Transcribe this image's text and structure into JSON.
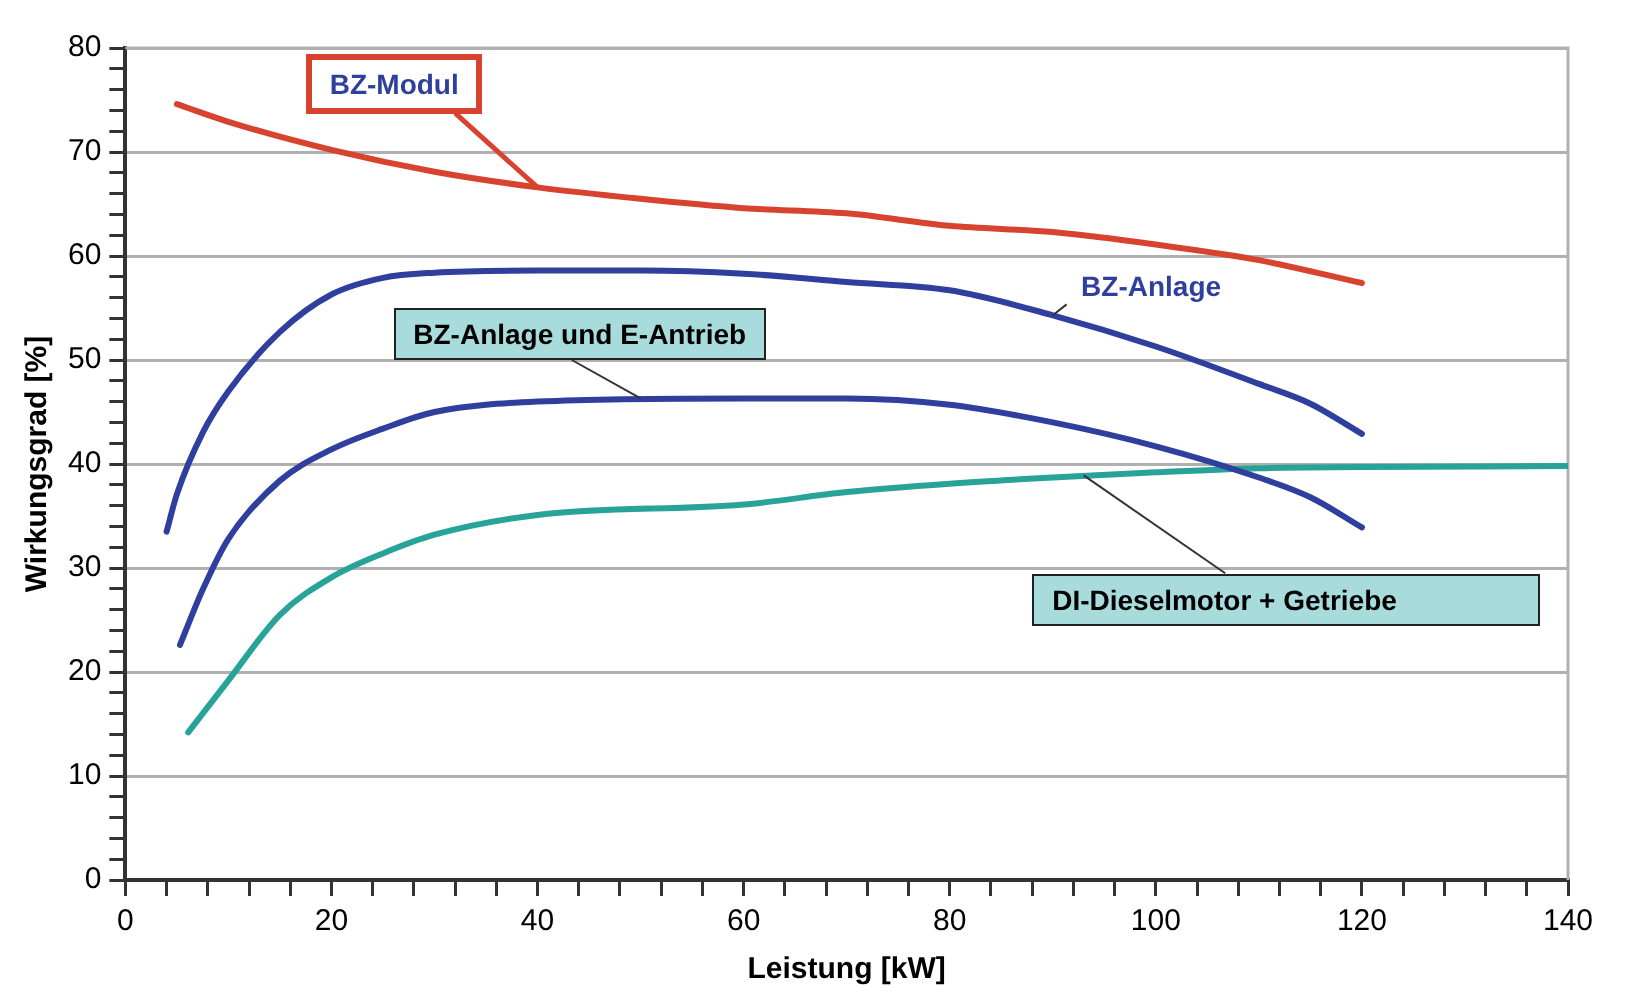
{
  "chart_data": {
    "type": "line",
    "xlabel": "Leistung [kW]",
    "ylabel": "Wirkungsgrad [%]",
    "xlim": [
      0,
      140
    ],
    "ylim": [
      0,
      80
    ],
    "xticks": [
      0,
      {
        "value": 4,
        "label": null
      },
      {
        "value": 8,
        "label": null
      },
      {
        "value": 12,
        "label": null
      },
      {
        "value": 16,
        "label": null
      },
      20,
      {
        "value": 24,
        "label": null
      },
      {
        "value": 28,
        "label": null
      },
      {
        "value": 32,
        "label": null
      },
      {
        "value": 36,
        "label": null
      },
      40,
      {
        "value": 44,
        "label": null
      },
      {
        "value": 48,
        "label": null
      },
      {
        "value": 52,
        "label": null
      },
      {
        "value": 56,
        "label": null
      },
      60,
      {
        "value": 64,
        "label": null
      },
      {
        "value": 68,
        "label": null
      },
      {
        "value": 72,
        "label": null
      },
      {
        "value": 76,
        "label": null
      },
      80,
      {
        "value": 84,
        "label": null
      },
      {
        "value": 88,
        "label": null
      },
      {
        "value": 92,
        "label": null
      },
      {
        "value": 96,
        "label": null
      },
      100,
      {
        "value": 104,
        "label": null
      },
      {
        "value": 108,
        "label": null
      },
      {
        "value": 112,
        "label": null
      },
      {
        "value": 116,
        "label": null
      },
      120,
      {
        "value": 124,
        "label": null
      },
      {
        "value": 128,
        "label": null
      },
      {
        "value": 132,
        "label": null
      },
      {
        "value": 136,
        "label": null
      },
      140
    ],
    "yticks": [
      0,
      {
        "value": 2,
        "label": null
      },
      {
        "value": 4,
        "label": null
      },
      {
        "value": 6,
        "label": null
      },
      {
        "value": 8,
        "label": null
      },
      10,
      {
        "value": 12,
        "label": null
      },
      {
        "value": 14,
        "label": null
      },
      {
        "value": 16,
        "label": null
      },
      {
        "value": 18,
        "label": null
      },
      20,
      {
        "value": 22,
        "label": null
      },
      {
        "value": 24,
        "label": null
      },
      {
        "value": 26,
        "label": null
      },
      {
        "value": 28,
        "label": null
      },
      30,
      {
        "value": 32,
        "label": null
      },
      {
        "value": 34,
        "label": null
      },
      {
        "value": 36,
        "label": null
      },
      {
        "value": 38,
        "label": null
      },
      40,
      {
        "value": 42,
        "label": null
      },
      {
        "value": 44,
        "label": null
      },
      {
        "value": 46,
        "label": null
      },
      {
        "value": 48,
        "label": null
      },
      50,
      {
        "value": 52,
        "label": null
      },
      {
        "value": 54,
        "label": null
      },
      {
        "value": 56,
        "label": null
      },
      {
        "value": 58,
        "label": null
      },
      60,
      {
        "value": 62,
        "label": null
      },
      {
        "value": 64,
        "label": null
      },
      {
        "value": 66,
        "label": null
      },
      {
        "value": 68,
        "label": null
      },
      70,
      {
        "value": 72,
        "label": null
      },
      {
        "value": 74,
        "label": null
      },
      {
        "value": 76,
        "label": null
      },
      {
        "value": 78,
        "label": null
      },
      80
    ],
    "annotations": [
      {
        "text": "BZ-Modul",
        "x": 40,
        "y": 66.6
      },
      {
        "text": "BZ-Anlage",
        "x": 90,
        "y": 54.3
      },
      {
        "text": "BZ-Anlage und E-Antrieb",
        "x": 50,
        "y": 46.3
      },
      {
        "text": "DI-Dieselmotor + Getriebe",
        "x": 93,
        "y": 38.9
      }
    ],
    "grid": "y",
    "legend": false,
    "marker": "none",
    "line_style": "solid",
    "series": [
      {
        "color": "#d8432f",
        "x": [
          5,
          10,
          20,
          30,
          40,
          50,
          60,
          70,
          80,
          90,
          100,
          110,
          120
        ],
        "values": [
          74.6,
          72.9,
          70.2,
          68.1,
          66.6,
          65.5,
          64.6,
          64.1,
          62.9,
          62.3,
          61.1,
          59.6,
          57.4
        ]
      },
      {
        "color": "#2f3f9e",
        "x": [
          4,
          5,
          7.5,
          10,
          15,
          20,
          25,
          30,
          40,
          50,
          60,
          70,
          80,
          90,
          100,
          110,
          115,
          120
        ],
        "values": [
          33.5,
          37.1,
          43.0,
          47.0,
          52.7,
          56.3,
          57.9,
          58.4,
          58.6,
          58.6,
          58.3,
          57.5,
          56.7,
          54.3,
          51.3,
          47.7,
          45.8,
          42.9
        ]
      },
      {
        "color": "#2f3f9e",
        "x": [
          5.3,
          7.5,
          10,
          15,
          20,
          25,
          30,
          40,
          60,
          70,
          80,
          90,
          100,
          110,
          115,
          120
        ],
        "values": [
          22.6,
          27.9,
          32.8,
          38.4,
          41.4,
          43.4,
          45.0,
          46.0,
          46.3,
          46.3,
          45.7,
          44.0,
          41.7,
          38.7,
          36.8,
          33.9
        ]
      },
      {
        "color": "#27a39a",
        "x": [
          6.1,
          10,
          15,
          20,
          25,
          30,
          40,
          60,
          70,
          80,
          90,
          100,
          110,
          120,
          140
        ],
        "values": [
          14.2,
          19.2,
          25.5,
          29.1,
          31.4,
          33.2,
          35.1,
          36.1,
          37.3,
          38.1,
          38.7,
          39.2,
          39.6,
          39.7,
          39.8
        ]
      }
    ]
  }
}
